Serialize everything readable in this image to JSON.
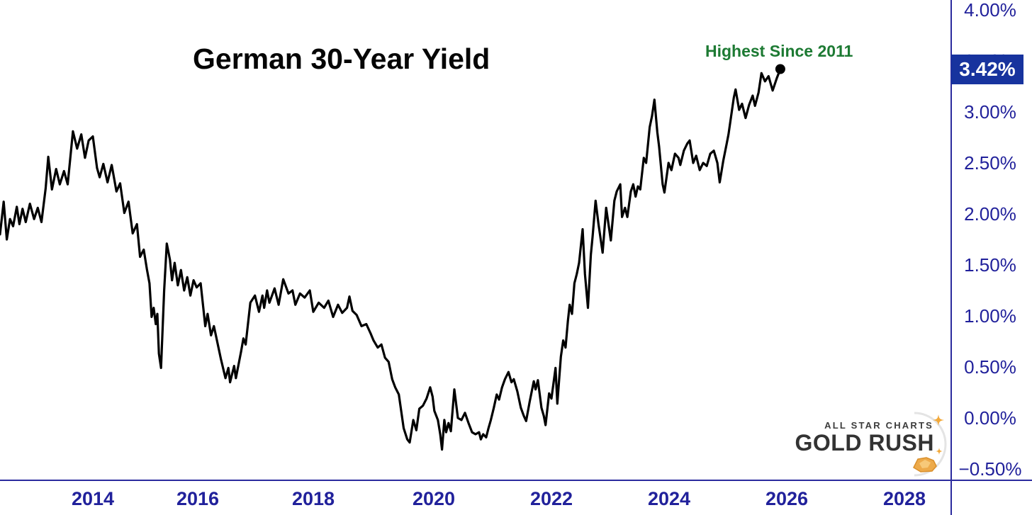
{
  "title": "German 30-Year Yield",
  "annotation": {
    "label": "Highest Since 2011",
    "color": "#1d7a33"
  },
  "last_price": {
    "label": "3.42%",
    "badge_color": "#17339e",
    "text_color": "#ffffff"
  },
  "watermark": {
    "line1": "ALL STAR CHARTS",
    "line2": "GOLD RUSH",
    "gold_color": "#f2a93b"
  },
  "axis": {
    "text_color": "#21219b",
    "line_color": "#2b2b9e",
    "y_ticks": [
      {
        "label": "4.00%",
        "value": 4.0
      },
      {
        "label": "3.50%",
        "value": 3.5
      },
      {
        "label": "3.00%",
        "value": 3.0
      },
      {
        "label": "2.50%",
        "value": 2.5
      },
      {
        "label": "2.00%",
        "value": 2.0
      },
      {
        "label": "1.50%",
        "value": 1.5
      },
      {
        "label": "1.00%",
        "value": 1.0
      },
      {
        "label": "0.50%",
        "value": 0.5
      },
      {
        "label": "0.00%",
        "value": 0.0
      },
      {
        "label": "−0.50%",
        "value": -0.5
      }
    ],
    "x_ticks": [
      {
        "label": "2014",
        "year": 2014
      },
      {
        "label": "2016",
        "year": 2016
      },
      {
        "label": "2018",
        "year": 2018
      },
      {
        "label": "2020",
        "year": 2020
      },
      {
        "label": "2022",
        "year": 2022
      },
      {
        "label": "2024",
        "year": 2024
      },
      {
        "label": "2026",
        "year": 2026
      },
      {
        "label": "2028",
        "year": 2028
      }
    ]
  },
  "chart_data": {
    "type": "line",
    "title": "German 30-Year Yield",
    "series_name": "German 30-Year Yield",
    "unit": "%",
    "x_unit": "decimal_year",
    "ylim": [
      -0.5,
      4.0
    ],
    "xlim_years": [
      2012.2,
      2028.8
    ],
    "grid": false,
    "line_color": "#000000",
    "annotation": "Highest Since 2011",
    "last_value": 3.42,
    "points": [
      [
        2012.23,
        1.8
      ],
      [
        2012.3,
        2.12
      ],
      [
        2012.36,
        1.75
      ],
      [
        2012.42,
        1.95
      ],
      [
        2012.48,
        1.88
      ],
      [
        2012.55,
        2.07
      ],
      [
        2012.6,
        1.9
      ],
      [
        2012.66,
        2.05
      ],
      [
        2012.72,
        1.92
      ],
      [
        2012.8,
        2.1
      ],
      [
        2012.88,
        1.95
      ],
      [
        2012.95,
        2.06
      ],
      [
        2013.02,
        1.92
      ],
      [
        2013.1,
        2.25
      ],
      [
        2013.15,
        2.56
      ],
      [
        2013.22,
        2.24
      ],
      [
        2013.3,
        2.44
      ],
      [
        2013.37,
        2.29
      ],
      [
        2013.45,
        2.42
      ],
      [
        2013.52,
        2.29
      ],
      [
        2013.62,
        2.81
      ],
      [
        2013.7,
        2.64
      ],
      [
        2013.78,
        2.78
      ],
      [
        2013.85,
        2.55
      ],
      [
        2013.92,
        2.72
      ],
      [
        2014.0,
        2.76
      ],
      [
        2014.08,
        2.45
      ],
      [
        2014.13,
        2.36
      ],
      [
        2014.2,
        2.49
      ],
      [
        2014.28,
        2.31
      ],
      [
        2014.36,
        2.48
      ],
      [
        2014.45,
        2.22
      ],
      [
        2014.52,
        2.3
      ],
      [
        2014.6,
        2.01
      ],
      [
        2014.68,
        2.12
      ],
      [
        2014.76,
        1.81
      ],
      [
        2014.84,
        1.9
      ],
      [
        2014.9,
        1.58
      ],
      [
        2014.97,
        1.65
      ],
      [
        2015.03,
        1.46
      ],
      [
        2015.08,
        1.32
      ],
      [
        2015.12,
        0.99
      ],
      [
        2015.16,
        1.08
      ],
      [
        2015.2,
        0.92
      ],
      [
        2015.23,
        1.02
      ],
      [
        2015.26,
        0.63
      ],
      [
        2015.3,
        0.49
      ],
      [
        2015.36,
        1.25
      ],
      [
        2015.41,
        1.71
      ],
      [
        2015.47,
        1.55
      ],
      [
        2015.51,
        1.35
      ],
      [
        2015.56,
        1.52
      ],
      [
        2015.62,
        1.3
      ],
      [
        2015.68,
        1.45
      ],
      [
        2015.74,
        1.25
      ],
      [
        2015.8,
        1.38
      ],
      [
        2015.86,
        1.2
      ],
      [
        2015.92,
        1.35
      ],
      [
        2015.98,
        1.28
      ],
      [
        2016.05,
        1.32
      ],
      [
        2016.13,
        0.9
      ],
      [
        2016.17,
        1.02
      ],
      [
        2016.23,
        0.81
      ],
      [
        2016.28,
        0.9
      ],
      [
        2016.4,
        0.58
      ],
      [
        2016.48,
        0.39
      ],
      [
        2016.53,
        0.49
      ],
      [
        2016.56,
        0.35
      ],
      [
        2016.63,
        0.51
      ],
      [
        2016.66,
        0.39
      ],
      [
        2016.75,
        0.65
      ],
      [
        2016.79,
        0.78
      ],
      [
        2016.83,
        0.72
      ],
      [
        2016.91,
        1.13
      ],
      [
        2016.99,
        1.2
      ],
      [
        2017.06,
        1.04
      ],
      [
        2017.12,
        1.2
      ],
      [
        2017.15,
        1.08
      ],
      [
        2017.2,
        1.25
      ],
      [
        2017.24,
        1.13
      ],
      [
        2017.33,
        1.27
      ],
      [
        2017.4,
        1.11
      ],
      [
        2017.48,
        1.36
      ],
      [
        2017.57,
        1.22
      ],
      [
        2017.64,
        1.25
      ],
      [
        2017.69,
        1.11
      ],
      [
        2017.77,
        1.22
      ],
      [
        2017.85,
        1.18
      ],
      [
        2017.94,
        1.25
      ],
      [
        2018.0,
        1.04
      ],
      [
        2018.09,
        1.13
      ],
      [
        2018.18,
        1.08
      ],
      [
        2018.25,
        1.15
      ],
      [
        2018.33,
        0.99
      ],
      [
        2018.41,
        1.11
      ],
      [
        2018.48,
        1.03
      ],
      [
        2018.56,
        1.08
      ],
      [
        2018.6,
        1.19
      ],
      [
        2018.65,
        1.05
      ],
      [
        2018.72,
        1.01
      ],
      [
        2018.8,
        0.9
      ],
      [
        2018.88,
        0.92
      ],
      [
        2018.95,
        0.83
      ],
      [
        2019.0,
        0.76
      ],
      [
        2019.07,
        0.69
      ],
      [
        2019.13,
        0.72
      ],
      [
        2019.19,
        0.59
      ],
      [
        2019.25,
        0.55
      ],
      [
        2019.31,
        0.38
      ],
      [
        2019.36,
        0.3
      ],
      [
        2019.42,
        0.23
      ],
      [
        2019.5,
        -0.1
      ],
      [
        2019.56,
        -0.21
      ],
      [
        2019.6,
        -0.24
      ],
      [
        2019.66,
        -0.02
      ],
      [
        2019.71,
        -0.12
      ],
      [
        2019.76,
        0.09
      ],
      [
        2019.82,
        0.12
      ],
      [
        2019.88,
        0.19
      ],
      [
        2019.94,
        0.3
      ],
      [
        2019.98,
        0.21
      ],
      [
        2020.01,
        0.07
      ],
      [
        2020.07,
        -0.02
      ],
      [
        2020.11,
        -0.16
      ],
      [
        2020.14,
        -0.31
      ],
      [
        2020.18,
        -0.02
      ],
      [
        2020.21,
        -0.14
      ],
      [
        2020.25,
        -0.05
      ],
      [
        2020.29,
        -0.13
      ],
      [
        2020.35,
        0.28
      ],
      [
        2020.41,
        0.0
      ],
      [
        2020.47,
        -0.02
      ],
      [
        2020.53,
        0.05
      ],
      [
        2020.59,
        -0.05
      ],
      [
        2020.65,
        -0.14
      ],
      [
        2020.71,
        -0.16
      ],
      [
        2020.77,
        -0.14
      ],
      [
        2020.8,
        -0.21
      ],
      [
        2020.84,
        -0.16
      ],
      [
        2020.89,
        -0.19
      ],
      [
        2020.93,
        -0.1
      ],
      [
        2020.97,
        -0.02
      ],
      [
        2021.02,
        0.1
      ],
      [
        2021.07,
        0.23
      ],
      [
        2021.11,
        0.18
      ],
      [
        2021.16,
        0.3
      ],
      [
        2021.21,
        0.38
      ],
      [
        2021.27,
        0.45
      ],
      [
        2021.32,
        0.35
      ],
      [
        2021.36,
        0.38
      ],
      [
        2021.42,
        0.26
      ],
      [
        2021.48,
        0.1
      ],
      [
        2021.53,
        0.02
      ],
      [
        2021.57,
        -0.03
      ],
      [
        2021.63,
        0.16
      ],
      [
        2021.7,
        0.36
      ],
      [
        2021.73,
        0.28
      ],
      [
        2021.77,
        0.37
      ],
      [
        2021.83,
        0.1
      ],
      [
        2021.87,
        0.02
      ],
      [
        2021.9,
        -0.07
      ],
      [
        2021.96,
        0.24
      ],
      [
        2022.0,
        0.19
      ],
      [
        2022.07,
        0.49
      ],
      [
        2022.1,
        0.14
      ],
      [
        2022.16,
        0.6
      ],
      [
        2022.2,
        0.76
      ],
      [
        2022.24,
        0.69
      ],
      [
        2022.28,
        0.95
      ],
      [
        2022.31,
        1.11
      ],
      [
        2022.35,
        1.02
      ],
      [
        2022.39,
        1.32
      ],
      [
        2022.43,
        1.41
      ],
      [
        2022.47,
        1.52
      ],
      [
        2022.53,
        1.85
      ],
      [
        2022.57,
        1.41
      ],
      [
        2022.62,
        1.08
      ],
      [
        2022.67,
        1.6
      ],
      [
        2022.7,
        1.78
      ],
      [
        2022.75,
        2.13
      ],
      [
        2022.8,
        1.9
      ],
      [
        2022.83,
        1.78
      ],
      [
        2022.87,
        1.62
      ],
      [
        2022.93,
        2.06
      ],
      [
        2023.01,
        1.74
      ],
      [
        2023.07,
        2.13
      ],
      [
        2023.11,
        2.22
      ],
      [
        2023.17,
        2.29
      ],
      [
        2023.2,
        1.97
      ],
      [
        2023.25,
        2.06
      ],
      [
        2023.29,
        1.97
      ],
      [
        2023.35,
        2.22
      ],
      [
        2023.39,
        2.29
      ],
      [
        2023.43,
        2.17
      ],
      [
        2023.47,
        2.27
      ],
      [
        2023.51,
        2.24
      ],
      [
        2023.57,
        2.55
      ],
      [
        2023.61,
        2.5
      ],
      [
        2023.67,
        2.85
      ],
      [
        2023.71,
        2.96
      ],
      [
        2023.75,
        3.12
      ],
      [
        2023.8,
        2.8
      ],
      [
        2023.83,
        2.66
      ],
      [
        2023.89,
        2.29
      ],
      [
        2023.92,
        2.21
      ],
      [
        2023.99,
        2.5
      ],
      [
        2024.04,
        2.43
      ],
      [
        2024.1,
        2.59
      ],
      [
        2024.16,
        2.55
      ],
      [
        2024.19,
        2.48
      ],
      [
        2024.25,
        2.62
      ],
      [
        2024.31,
        2.69
      ],
      [
        2024.35,
        2.72
      ],
      [
        2024.41,
        2.5
      ],
      [
        2024.46,
        2.57
      ],
      [
        2024.52,
        2.43
      ],
      [
        2024.58,
        2.5
      ],
      [
        2024.64,
        2.47
      ],
      [
        2024.7,
        2.59
      ],
      [
        2024.76,
        2.62
      ],
      [
        2024.82,
        2.5
      ],
      [
        2024.86,
        2.31
      ],
      [
        2024.92,
        2.52
      ],
      [
        2024.98,
        2.69
      ],
      [
        2025.01,
        2.78
      ],
      [
        2025.1,
        3.14
      ],
      [
        2025.13,
        3.22
      ],
      [
        2025.19,
        3.02
      ],
      [
        2025.24,
        3.08
      ],
      [
        2025.3,
        2.94
      ],
      [
        2025.36,
        3.07
      ],
      [
        2025.42,
        3.16
      ],
      [
        2025.46,
        3.06
      ],
      [
        2025.52,
        3.19
      ],
      [
        2025.57,
        3.38
      ],
      [
        2025.63,
        3.3
      ],
      [
        2025.69,
        3.35
      ],
      [
        2025.76,
        3.21
      ],
      [
        2025.83,
        3.33
      ],
      [
        2025.89,
        3.42
      ]
    ]
  }
}
